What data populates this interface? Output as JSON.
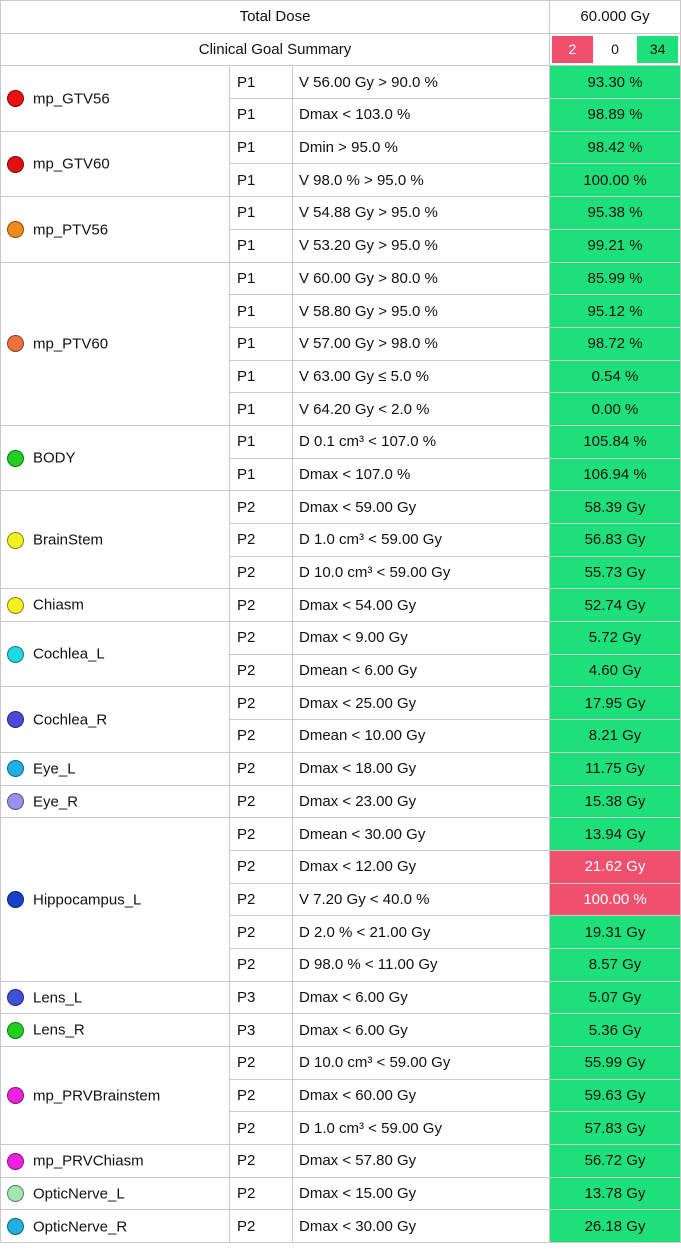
{
  "header": {
    "total_dose_label": "Total Dose",
    "total_dose_value": "60.000 Gy",
    "summary_label": "Clinical Goal Summary",
    "count_failed": "2",
    "count_unknown": "0",
    "count_passed": "34"
  },
  "colors": {
    "pass": "#1ee07a",
    "fail": "#f0506e"
  },
  "structures": [
    {
      "name": "mp_GTV56",
      "color": "#e81010",
      "goals": [
        {
          "priority": "P1",
          "goal": "V 56.00 Gy > 90.0 %",
          "result": "93.30 %",
          "status": "pass"
        },
        {
          "priority": "P1",
          "goal": "Dmax < 103.0 %",
          "result": "98.89 %",
          "status": "pass"
        }
      ]
    },
    {
      "name": "mp_GTV60",
      "color": "#e01010",
      "goals": [
        {
          "priority": "P1",
          "goal": "Dmin > 95.0 %",
          "result": "98.42 %",
          "status": "pass"
        },
        {
          "priority": "P1",
          "goal": "V 98.0 % > 95.0 %",
          "result": "100.00 %",
          "status": "pass"
        }
      ]
    },
    {
      "name": "mp_PTV56",
      "color": "#f08a1a",
      "goals": [
        {
          "priority": "P1",
          "goal": "V 54.88 Gy > 95.0 %",
          "result": "95.38 %",
          "status": "pass"
        },
        {
          "priority": "P1",
          "goal": "V 53.20 Gy > 95.0 %",
          "result": "99.21 %",
          "status": "pass"
        }
      ]
    },
    {
      "name": "mp_PTV60",
      "color": "#f07040",
      "goals": [
        {
          "priority": "P1",
          "goal": "V 60.00 Gy > 80.0 %",
          "result": "85.99 %",
          "status": "pass"
        },
        {
          "priority": "P1",
          "goal": "V 58.80 Gy > 95.0 %",
          "result": "95.12 %",
          "status": "pass"
        },
        {
          "priority": "P1",
          "goal": "V 57.00 Gy > 98.0 %",
          "result": "98.72 %",
          "status": "pass"
        },
        {
          "priority": "P1",
          "goal": "V 63.00 Gy ≤ 5.0 %",
          "result": "0.54 %",
          "status": "pass"
        },
        {
          "priority": "P1",
          "goal": "V 64.20 Gy < 2.0 %",
          "result": "0.00 %",
          "status": "pass"
        }
      ]
    },
    {
      "name": "BODY",
      "color": "#20d020",
      "goals": [
        {
          "priority": "P1",
          "goal": "D 0.1 cm³ < 107.0 %",
          "result": "105.84 %",
          "status": "pass"
        },
        {
          "priority": "P1",
          "goal": "Dmax < 107.0 %",
          "result": "106.94 %",
          "status": "pass"
        }
      ]
    },
    {
      "name": "BrainStem",
      "color": "#f5f020",
      "goals": [
        {
          "priority": "P2",
          "goal": "Dmax < 59.00 Gy",
          "result": "58.39 Gy",
          "status": "pass"
        },
        {
          "priority": "P2",
          "goal": "D 1.0 cm³ < 59.00 Gy",
          "result": "56.83 Gy",
          "status": "pass"
        },
        {
          "priority": "P2",
          "goal": "D 10.0 cm³ < 59.00 Gy",
          "result": "55.73 Gy",
          "status": "pass"
        }
      ]
    },
    {
      "name": "Chiasm",
      "color": "#f5f020",
      "goals": [
        {
          "priority": "P2",
          "goal": "Dmax < 54.00 Gy",
          "result": "52.74 Gy",
          "status": "pass"
        }
      ]
    },
    {
      "name": "Cochlea_L",
      "color": "#20d8e0",
      "goals": [
        {
          "priority": "P2",
          "goal": "Dmax < 9.00 Gy",
          "result": "5.72 Gy",
          "status": "pass"
        },
        {
          "priority": "P2",
          "goal": "Dmean < 6.00 Gy",
          "result": "4.60 Gy",
          "status": "pass"
        }
      ]
    },
    {
      "name": "Cochlea_R",
      "color": "#4a4ad8",
      "goals": [
        {
          "priority": "P2",
          "goal": "Dmax < 25.00 Gy",
          "result": "17.95 Gy",
          "status": "pass"
        },
        {
          "priority": "P2",
          "goal": "Dmean < 10.00 Gy",
          "result": "8.21 Gy",
          "status": "pass"
        }
      ]
    },
    {
      "name": "Eye_L",
      "color": "#20b0e8",
      "goals": [
        {
          "priority": "P2",
          "goal": "Dmax < 18.00 Gy",
          "result": "11.75 Gy",
          "status": "pass"
        }
      ]
    },
    {
      "name": "Eye_R",
      "color": "#9a90f0",
      "goals": [
        {
          "priority": "P2",
          "goal": "Dmax < 23.00 Gy",
          "result": "15.38 Gy",
          "status": "pass"
        }
      ]
    },
    {
      "name": "Hippocampus_L",
      "color": "#1840c8",
      "goals": [
        {
          "priority": "P2",
          "goal": "Dmean < 30.00 Gy",
          "result": "13.94 Gy",
          "status": "pass"
        },
        {
          "priority": "P2",
          "goal": "Dmax < 12.00 Gy",
          "result": "21.62 Gy",
          "status": "fail"
        },
        {
          "priority": "P2",
          "goal": "V 7.20 Gy < 40.0 %",
          "result": "100.00 %",
          "status": "fail"
        },
        {
          "priority": "P2",
          "goal": "D 2.0 % < 21.00 Gy",
          "result": "19.31 Gy",
          "status": "pass"
        },
        {
          "priority": "P2",
          "goal": "D 98.0 % < 11.00 Gy",
          "result": "8.57 Gy",
          "status": "pass"
        }
      ]
    },
    {
      "name": "Lens_L",
      "color": "#4050d8",
      "goals": [
        {
          "priority": "P3",
          "goal": "Dmax < 6.00 Gy",
          "result": "5.07 Gy",
          "status": "pass"
        }
      ]
    },
    {
      "name": "Lens_R",
      "color": "#20d020",
      "goals": [
        {
          "priority": "P3",
          "goal": "Dmax < 6.00 Gy",
          "result": "5.36 Gy",
          "status": "pass"
        }
      ]
    },
    {
      "name": "mp_PRVBrainstem",
      "color": "#f020e0",
      "goals": [
        {
          "priority": "P2",
          "goal": "D 10.0 cm³ < 59.00 Gy",
          "result": "55.99 Gy",
          "status": "pass"
        },
        {
          "priority": "P2",
          "goal": "Dmax < 60.00 Gy",
          "result": "59.63 Gy",
          "status": "pass"
        },
        {
          "priority": "P2",
          "goal": "D 1.0 cm³ < 59.00 Gy",
          "result": "57.83 Gy",
          "status": "pass"
        }
      ]
    },
    {
      "name": "mp_PRVChiasm",
      "color": "#f020e0",
      "goals": [
        {
          "priority": "P2",
          "goal": "Dmax < 57.80 Gy",
          "result": "56.72 Gy",
          "status": "pass"
        }
      ]
    },
    {
      "name": "OpticNerve_L",
      "color": "#a0e8b0",
      "goals": [
        {
          "priority": "P2",
          "goal": "Dmax < 15.00 Gy",
          "result": "13.78 Gy",
          "status": "pass"
        }
      ]
    },
    {
      "name": "OpticNerve_R",
      "color": "#20b0e0",
      "goals": [
        {
          "priority": "P2",
          "goal": "Dmax < 30.00 Gy",
          "result": "26.18 Gy",
          "status": "pass"
        }
      ]
    }
  ]
}
